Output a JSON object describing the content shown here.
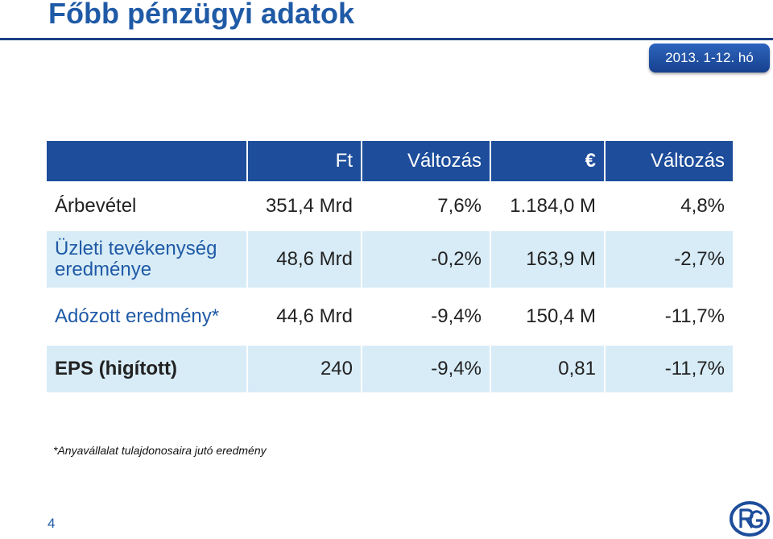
{
  "slide": {
    "title": "Főbb pénzügyi adatok",
    "period": "2013. 1-12. hó",
    "page_number": "4",
    "footnote": "*Anyavállalat tulajdonosaira jutó eredmény",
    "logo_icon": "richter-gedeon-logo-icon"
  },
  "table": {
    "headers": [
      "",
      "Ft",
      "Változás",
      "€",
      "Változás"
    ],
    "rows": [
      {
        "label": "Árbevétel",
        "ft": "351,4 Mrd",
        "ft_change": "7,6%",
        "eur": "1.184,0 M",
        "eur_change": "4,8%"
      },
      {
        "label": "Üzleti tevékenység eredménye",
        "ft": "48,6 Mrd",
        "ft_change": "-0,2%",
        "eur": "163,9 M",
        "eur_change": "-2,7%"
      },
      {
        "label": "Adózott eredmény*",
        "ft": "44,6 Mrd",
        "ft_change": "-9,4%",
        "eur": "150,4 M",
        "eur_change": "-11,7%"
      },
      {
        "label": "EPS (higított)",
        "ft": "240",
        "ft_change": "-9,4%",
        "eur": "0,81",
        "eur_change": "-11,7%"
      }
    ]
  },
  "colors": {
    "title": "#1f5aa6",
    "header_bg": "#1d4d9b",
    "band_bg": "#d8ecf7",
    "badge_bg": "#2d64bd"
  }
}
